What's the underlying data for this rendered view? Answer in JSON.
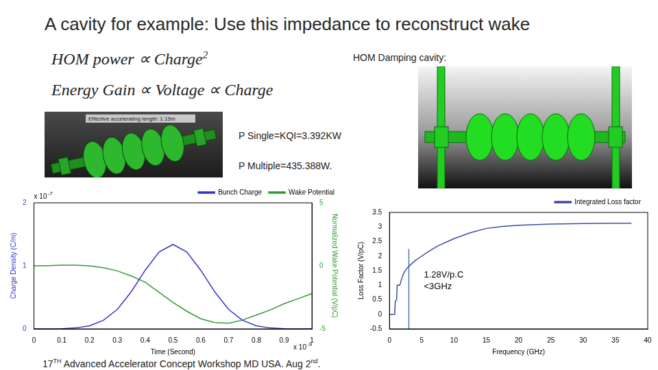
{
  "slide": {
    "title": "A cavity for example: Use this impedance to reconstruct wake",
    "formulas": [
      {
        "text": "HOM power ∝ Charge",
        "exponent": "2"
      },
      {
        "text": "Energy Gain ∝ Voltage ∝ Charge"
      }
    ],
    "right_caption": "HOM Damping cavity:",
    "image_label": "Effective accelerating length: 1.15m",
    "power_lines": [
      "P Single=KQI=3.392KW",
      "P Multiple=435.388W."
    ],
    "footer": [
      {
        "text": "17"
      },
      {
        "text": "TH",
        "sup": true
      },
      {
        "text": " Advanced Accelerator Concept Workshop MD USA. Aug 2"
      },
      {
        "text": "nd",
        "sup": true
      },
      {
        "text": "."
      }
    ]
  },
  "chart_data": [
    {
      "type": "line",
      "x_label": "Time (Second)",
      "y_label": "Charge Density (C/m)",
      "y2_label": "Normalized Wake Potential (V/pC)",
      "y_multiplier": {
        "base": "x 10",
        "exponent": "-7"
      },
      "x_multiplier": {
        "base": "x 10",
        "exponent": "-9"
      },
      "x": [
        0,
        0.05,
        0.1,
        0.15,
        0.2,
        0.25,
        0.3,
        0.35,
        0.4,
        0.45,
        0.5,
        0.55,
        0.6,
        0.65,
        0.7,
        0.75,
        0.8,
        0.85,
        0.9,
        0.95,
        1
      ],
      "series": [
        {
          "name": "Bunch Charge",
          "color": "#3333cc",
          "values": [
            0,
            0.001,
            0.004,
            0.015,
            0.05,
            0.137,
            0.31,
            0.59,
            0.93,
            1.22,
            1.34,
            1.22,
            0.93,
            0.59,
            0.31,
            0.137,
            0.05,
            0.015,
            0.004,
            0.001,
            0
          ]
        },
        {
          "name": "Wake Potential",
          "color": "#339933",
          "axis": "y2",
          "values": [
            0,
            0.02,
            0.05,
            0.05,
            0,
            -0.15,
            -0.4,
            -0.8,
            -1.3,
            -2.1,
            -2.9,
            -3.6,
            -4.2,
            -4.5,
            -4.55,
            -4.3,
            -3.9,
            -3.5,
            -3.0,
            -2.6,
            -2.2
          ]
        }
      ],
      "xlim": [
        0,
        1
      ],
      "xticks": [
        0,
        0.1,
        0.2,
        0.3,
        0.4,
        0.5,
        0.6,
        0.7,
        0.8,
        0.9,
        1
      ],
      "ylim": [
        0,
        2
      ],
      "yticks": [
        0,
        1,
        2
      ],
      "y2lim": [
        -5,
        5
      ],
      "y2ticks": [
        -5,
        0,
        5
      ],
      "legend": "top-right",
      "grid": false
    },
    {
      "type": "line",
      "x_label": "Frequency (GHz)",
      "y_label": "Loss Factor (V/pC)",
      "annotations": [
        "1.28V/p.C",
        "<3GHz"
      ],
      "x": [
        0,
        0.8,
        0.9,
        1.1,
        1.2,
        1.6,
        1.8,
        2.0,
        2.3,
        2.6,
        3.0,
        3.5,
        4.0,
        5.0,
        6.0,
        7.5,
        9.0,
        10,
        12.5,
        15,
        17.5,
        20,
        25,
        30,
        35,
        37.5
      ],
      "series": [
        {
          "name": "Integrated Loss factor",
          "color": "#3b4ba8",
          "values": [
            0,
            0,
            0.45,
            0.5,
            1.0,
            1.0,
            1.15,
            1.3,
            1.45,
            1.55,
            1.65,
            1.75,
            1.85,
            2.0,
            2.15,
            2.35,
            2.5,
            2.6,
            2.8,
            2.95,
            3.02,
            3.06,
            3.1,
            3.12,
            3.13,
            3.13
          ]
        }
      ],
      "reference_line": {
        "x": [
          3,
          3
        ],
        "y": [
          -0.5,
          2.25
        ],
        "color": "#5577bb"
      },
      "xlim": [
        0,
        40
      ],
      "xticks": [
        0,
        5,
        10,
        15,
        20,
        25,
        30,
        35,
        40
      ],
      "ylim": [
        -0.5,
        3.5
      ],
      "yticks": [
        -0.5,
        0,
        0.5,
        1,
        1.5,
        2,
        2.5,
        3,
        3.5
      ],
      "legend": "top-right",
      "grid": false
    }
  ]
}
